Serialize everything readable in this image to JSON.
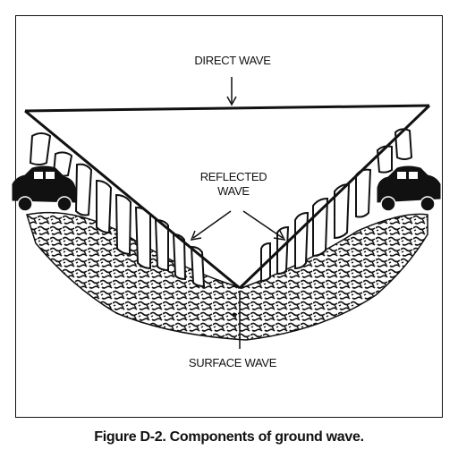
{
  "figure": {
    "labels": {
      "direct_wave": "DIRECT WAVE",
      "reflected_wave_line1": "REFLECTED",
      "reflected_wave_line2": "WAVE",
      "surface_wave": "SURFACE WAVE"
    },
    "caption": "Figure D-2. Components of ground wave.",
    "icons": [
      "car-icon",
      "car-icon"
    ]
  }
}
